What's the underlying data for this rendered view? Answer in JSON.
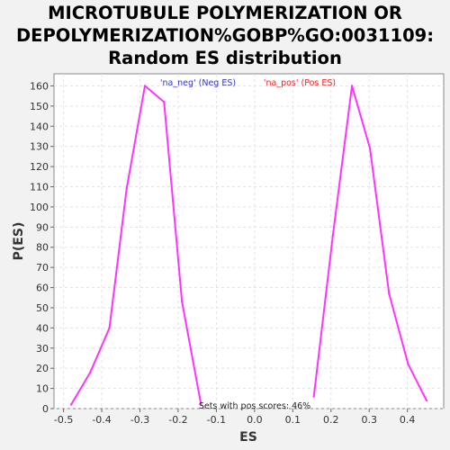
{
  "chart_data": {
    "type": "line",
    "title_lines": [
      "MICROTUBULE POLYMERIZATION OR",
      "DEPOLYMERIZATION%GOBP%GO:0031109:",
      "Random ES distribution"
    ],
    "xlabel": "ES",
    "ylabel": "P(ES)",
    "xlim": [
      -0.525,
      0.495
    ],
    "ylim": [
      0,
      166
    ],
    "x_ticks": [
      "-0.5",
      "-0.4",
      "-0.3",
      "-0.2",
      "-0.1",
      "0.0",
      "0.1",
      "0.2",
      "0.3",
      "0.4"
    ],
    "x_tick_values": [
      -0.5,
      -0.4,
      -0.3,
      -0.2,
      -0.1,
      0.0,
      0.1,
      0.2,
      0.3,
      0.4
    ],
    "y_ticks": [
      "0",
      "10",
      "20",
      "30",
      "40",
      "50",
      "60",
      "70",
      "80",
      "90",
      "100",
      "110",
      "120",
      "130",
      "140",
      "150",
      "160"
    ],
    "y_tick_values": [
      0,
      10,
      20,
      30,
      40,
      50,
      60,
      70,
      80,
      90,
      100,
      110,
      120,
      130,
      140,
      150,
      160
    ],
    "grid": true,
    "legend_position": "top",
    "series": [
      {
        "name": "'na_neg' (Neg ES)",
        "color": "#ff33ff",
        "legend_color": "#3333cc",
        "x": [
          -0.48,
          -0.43,
          -0.38,
          -0.335,
          -0.287,
          -0.237,
          -0.19,
          -0.14
        ],
        "y": [
          2,
          18,
          40,
          109,
          160,
          152,
          53,
          2
        ]
      },
      {
        "name": "'na_pos' (Pos ES)",
        "color": "#ff33ff",
        "legend_color": "#ee2222",
        "x": [
          0.155,
          0.205,
          0.255,
          0.302,
          0.352,
          0.402,
          0.45
        ],
        "y": [
          6,
          86,
          160,
          129,
          57,
          22,
          4
        ]
      }
    ],
    "annotation": "Sets with pos scores: 46%"
  }
}
